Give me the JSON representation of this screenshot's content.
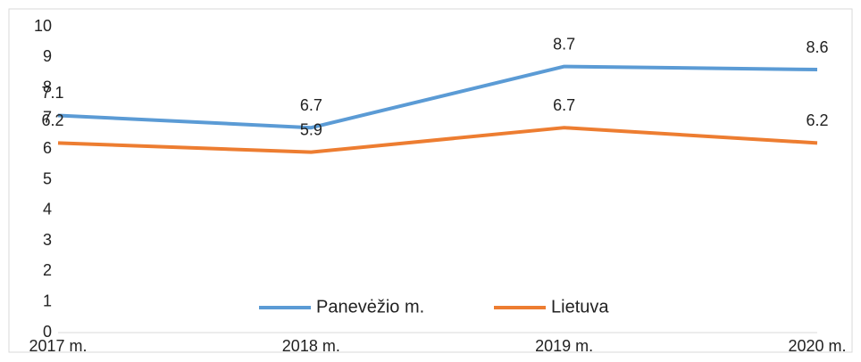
{
  "chart_data": {
    "type": "line",
    "categories": [
      "2017 m.",
      "2018 m.",
      "2019 m.",
      "2020 m."
    ],
    "series": [
      {
        "name": "Panevėžio m.",
        "color": "#5b9bd5",
        "values": [
          7.1,
          6.7,
          8.7,
          8.6
        ]
      },
      {
        "name": "Lietuva",
        "color": "#ed7d31",
        "values": [
          6.2,
          5.9,
          6.7,
          6.2
        ]
      }
    ],
    "ylim": [
      0,
      10
    ],
    "yticks": [
      0,
      1,
      2,
      3,
      4,
      5,
      6,
      7,
      8,
      9,
      10
    ],
    "grid": false,
    "legend": "bottom"
  }
}
